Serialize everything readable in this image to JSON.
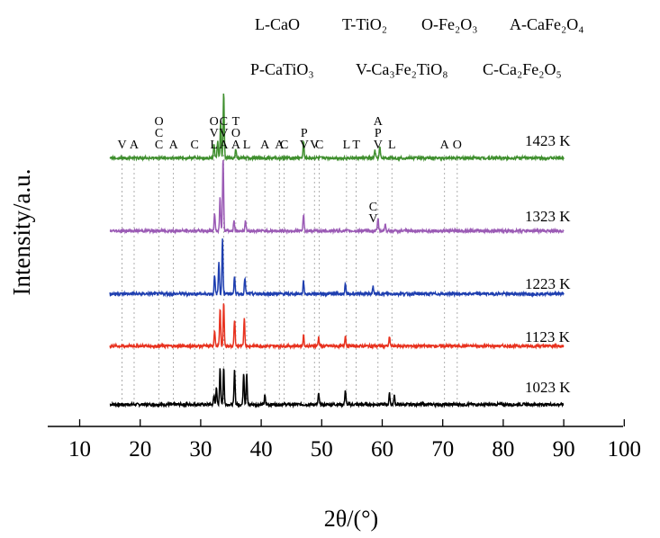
{
  "chart_data": {
    "type": "line",
    "xlabel": "2θ/(°)",
    "ylabel": "Intensity/a.u.",
    "xlim": [
      5,
      100
    ],
    "x_ticks": [
      10,
      20,
      30,
      40,
      50,
      60,
      70,
      80,
      90,
      100
    ],
    "x_range": [
      15,
      90
    ],
    "legend": [
      {
        "symbol": "L",
        "phase": "CaO"
      },
      {
        "symbol": "T",
        "phase": "TiO₂"
      },
      {
        "symbol": "O",
        "phase": "Fe₂O₃"
      },
      {
        "symbol": "A",
        "phase": "CaFe₂O₄"
      },
      {
        "symbol": "P",
        "phase": "CaTiO₃"
      },
      {
        "symbol": "V",
        "phase": "Ca₃Fe₂TiO₈"
      },
      {
        "symbol": "C",
        "phase": "Ca₂Fe₂O₅"
      }
    ],
    "series": [
      {
        "name": "1023 K",
        "color": "#000000",
        "peaks": [
          [
            32.2,
            10
          ],
          [
            32.6,
            18
          ],
          [
            33.2,
            42
          ],
          [
            33.8,
            42
          ],
          [
            35.6,
            38
          ],
          [
            37.1,
            36
          ],
          [
            37.6,
            34
          ],
          [
            40.6,
            10
          ],
          [
            49.5,
            12
          ],
          [
            53.9,
            16
          ],
          [
            61.2,
            12
          ],
          [
            62.0,
            10
          ]
        ]
      },
      {
        "name": "1123 K",
        "color": "#e8321f",
        "peaks": [
          [
            32.3,
            18
          ],
          [
            33.2,
            42
          ],
          [
            33.8,
            48
          ],
          [
            35.6,
            30
          ],
          [
            37.2,
            32
          ],
          [
            47.0,
            12
          ],
          [
            49.5,
            10
          ],
          [
            53.9,
            12
          ],
          [
            61.2,
            10
          ]
        ]
      },
      {
        "name": "1223 K",
        "color": "#1f3fb0",
        "peaks": [
          [
            32.3,
            20
          ],
          [
            33.0,
            36
          ],
          [
            33.6,
            62
          ],
          [
            35.6,
            20
          ],
          [
            37.3,
            18
          ],
          [
            47.0,
            14
          ],
          [
            53.9,
            10
          ],
          [
            58.5,
            8
          ]
        ]
      },
      {
        "name": "1323 K",
        "color": "#9b5bb5",
        "peaks": [
          [
            32.3,
            20
          ],
          [
            33.2,
            38
          ],
          [
            33.7,
            82
          ],
          [
            35.5,
            12
          ],
          [
            37.4,
            12
          ],
          [
            47.0,
            18
          ],
          [
            59.3,
            14
          ],
          [
            60.5,
            8
          ]
        ]
      },
      {
        "name": "1423 K",
        "color": "#3f8f2e",
        "peaks": [
          [
            32.2,
            16
          ],
          [
            32.8,
            18
          ],
          [
            33.3,
            40
          ],
          [
            33.8,
            72
          ],
          [
            35.8,
            10
          ],
          [
            47.0,
            18
          ],
          [
            58.8,
            8
          ],
          [
            59.6,
            12
          ]
        ]
      }
    ],
    "markers": [
      {
        "labels": [
          "V"
        ],
        "x": 17.0
      },
      {
        "labels": [
          "A"
        ],
        "x": 19.0
      },
      {
        "labels": [
          "O",
          "C",
          "C"
        ],
        "x": 23.1
      },
      {
        "labels": [
          "A"
        ],
        "x": 25.5
      },
      {
        "labels": [
          "C"
        ],
        "x": 29.0
      },
      {
        "labels": [
          "O",
          "V",
          "L"
        ],
        "x": 32.2
      },
      {
        "labels": [
          "C",
          "V",
          "A"
        ],
        "x": 33.8
      },
      {
        "labels": [
          "T",
          "O",
          "A"
        ],
        "x": 35.8
      },
      {
        "labels": [
          "L"
        ],
        "x": 37.6
      },
      {
        "labels": [
          "A"
        ],
        "x": 40.6
      },
      {
        "labels": [
          "A"
        ],
        "x": 43.0
      },
      {
        "labels": [
          "C"
        ],
        "x": 43.8
      },
      {
        "labels": [
          "P",
          "V"
        ],
        "x": 47.1
      },
      {
        "labels": [
          "V"
        ],
        "x": 48.8
      },
      {
        "labels": [
          "C"
        ],
        "x": 49.6
      },
      {
        "labels": [
          "L"
        ],
        "x": 54.1
      },
      {
        "labels": [
          "T"
        ],
        "x": 55.7
      },
      {
        "labels": [
          "A",
          "P",
          "V"
        ],
        "x": 59.3
      },
      {
        "labels": [
          "L"
        ],
        "x": 61.6
      },
      {
        "labels": [
          "A"
        ],
        "x": 70.3
      },
      {
        "labels": [
          "O"
        ],
        "x": 72.4
      }
    ],
    "extra_marker": {
      "labels": [
        "C",
        "V"
      ],
      "x": 58.5,
      "series": "1323 K"
    },
    "grid": false
  }
}
